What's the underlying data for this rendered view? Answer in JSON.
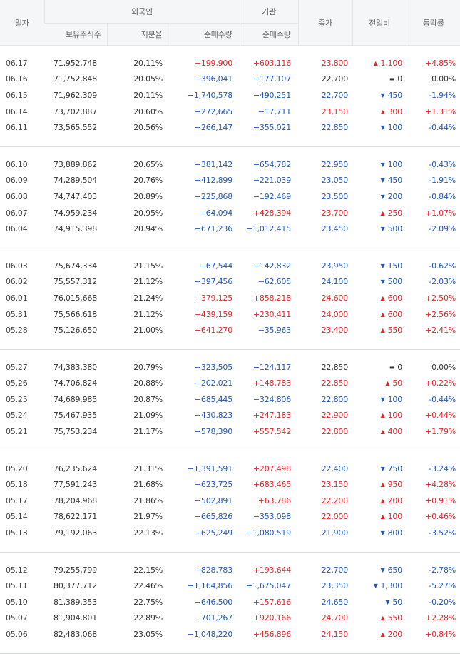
{
  "header": {
    "date": "일자",
    "foreign": "외국인",
    "institution": "기관",
    "close": "종가",
    "change": "전일비",
    "rate": "등락률",
    "holdings": "보유주식수",
    "ratio": "지분율",
    "foreign_net": "순매수량",
    "inst_net": "순매수량"
  },
  "groups": [
    [
      {
        "date": "06.17",
        "holdings": "71,952,748",
        "ratio": "20.11%",
        "foreign": "+199,900",
        "inst": "+603,116",
        "close": "23,800",
        "dir": "up",
        "change": "1,100",
        "rate": "+4.85%"
      },
      {
        "date": "06.16",
        "holdings": "71,752,848",
        "ratio": "20.05%",
        "foreign": "−396,041",
        "inst": "−177,107",
        "close": "22,700",
        "dir": "flat",
        "change": "0",
        "rate": "0.00%"
      },
      {
        "date": "06.15",
        "holdings": "71,962,309",
        "ratio": "20.11%",
        "foreign": "−1,740,578",
        "inst": "−490,251",
        "close": "22,700",
        "dir": "down",
        "change": "450",
        "rate": "-1.94%"
      },
      {
        "date": "06.14",
        "holdings": "73,702,887",
        "ratio": "20.60%",
        "foreign": "−272,665",
        "inst": "−17,711",
        "close": "23,150",
        "dir": "up",
        "change": "300",
        "rate": "+1.31%"
      },
      {
        "date": "06.11",
        "holdings": "73,565,552",
        "ratio": "20.56%",
        "foreign": "−266,147",
        "inst": "−355,021",
        "close": "22,850",
        "dir": "down",
        "change": "100",
        "rate": "-0.44%"
      }
    ],
    [
      {
        "date": "06.10",
        "holdings": "73,889,862",
        "ratio": "20.65%",
        "foreign": "−381,142",
        "inst": "−654,782",
        "close": "22,950",
        "dir": "down",
        "change": "100",
        "rate": "-0.43%"
      },
      {
        "date": "06.09",
        "holdings": "74,289,504",
        "ratio": "20.76%",
        "foreign": "−412,899",
        "inst": "−221,039",
        "close": "23,050",
        "dir": "down",
        "change": "450",
        "rate": "-1.91%"
      },
      {
        "date": "06.08",
        "holdings": "74,747,403",
        "ratio": "20.89%",
        "foreign": "−225,868",
        "inst": "−192,469",
        "close": "23,500",
        "dir": "down",
        "change": "200",
        "rate": "-0.84%"
      },
      {
        "date": "06.07",
        "holdings": "74,959,234",
        "ratio": "20.95%",
        "foreign": "−64,094",
        "inst": "+428,394",
        "close": "23,700",
        "dir": "up",
        "change": "250",
        "rate": "+1.07%"
      },
      {
        "date": "06.04",
        "holdings": "74,915,398",
        "ratio": "20.94%",
        "foreign": "−671,236",
        "inst": "−1,012,415",
        "close": "23,450",
        "dir": "down",
        "change": "500",
        "rate": "-2.09%"
      }
    ],
    [
      {
        "date": "06.03",
        "holdings": "75,674,334",
        "ratio": "21.15%",
        "foreign": "−67,544",
        "inst": "−142,832",
        "close": "23,950",
        "dir": "down",
        "change": "150",
        "rate": "-0.62%"
      },
      {
        "date": "06.02",
        "holdings": "75,557,312",
        "ratio": "21.12%",
        "foreign": "−397,456",
        "inst": "−62,605",
        "close": "24,100",
        "dir": "down",
        "change": "500",
        "rate": "-2.03%"
      },
      {
        "date": "06.01",
        "holdings": "76,015,668",
        "ratio": "21.24%",
        "foreign": "+379,125",
        "inst": "+858,218",
        "close": "24,600",
        "dir": "up",
        "change": "600",
        "rate": "+2.50%"
      },
      {
        "date": "05.31",
        "holdings": "75,566,618",
        "ratio": "21.12%",
        "foreign": "+439,159",
        "inst": "+230,411",
        "close": "24,000",
        "dir": "up",
        "change": "600",
        "rate": "+2.56%"
      },
      {
        "date": "05.28",
        "holdings": "75,126,650",
        "ratio": "21.00%",
        "foreign": "+641,270",
        "inst": "−35,963",
        "close": "23,400",
        "dir": "up",
        "change": "550",
        "rate": "+2.41%"
      }
    ],
    [
      {
        "date": "05.27",
        "holdings": "74,383,380",
        "ratio": "20.79%",
        "foreign": "−323,505",
        "inst": "−124,117",
        "close": "22,850",
        "dir": "flat",
        "change": "0",
        "rate": "0.00%"
      },
      {
        "date": "05.26",
        "holdings": "74,706,824",
        "ratio": "20.88%",
        "foreign": "−202,021",
        "inst": "+148,783",
        "close": "22,850",
        "dir": "up",
        "change": "50",
        "rate": "+0.22%"
      },
      {
        "date": "05.25",
        "holdings": "74,689,985",
        "ratio": "20.87%",
        "foreign": "−685,445",
        "inst": "−324,806",
        "close": "22,800",
        "dir": "down",
        "change": "100",
        "rate": "-0.44%"
      },
      {
        "date": "05.24",
        "holdings": "75,467,935",
        "ratio": "21.09%",
        "foreign": "−430,823",
        "inst": "+247,183",
        "close": "22,900",
        "dir": "up",
        "change": "100",
        "rate": "+0.44%"
      },
      {
        "date": "05.21",
        "holdings": "75,753,234",
        "ratio": "21.17%",
        "foreign": "−578,390",
        "inst": "+557,542",
        "close": "22,800",
        "dir": "up",
        "change": "400",
        "rate": "+1.79%"
      }
    ],
    [
      {
        "date": "05.20",
        "holdings": "76,235,624",
        "ratio": "21.31%",
        "foreign": "−1,391,591",
        "inst": "+207,498",
        "close": "22,400",
        "dir": "down",
        "change": "750",
        "rate": "-3.24%"
      },
      {
        "date": "05.18",
        "holdings": "77,591,243",
        "ratio": "21.68%",
        "foreign": "−623,725",
        "inst": "+683,465",
        "close": "23,150",
        "dir": "up",
        "change": "950",
        "rate": "+4.28%"
      },
      {
        "date": "05.17",
        "holdings": "78,204,968",
        "ratio": "21.86%",
        "foreign": "−502,891",
        "inst": "+63,786",
        "close": "22,200",
        "dir": "up",
        "change": "200",
        "rate": "+0.91%"
      },
      {
        "date": "05.14",
        "holdings": "78,622,171",
        "ratio": "21.97%",
        "foreign": "−665,826",
        "inst": "−353,098",
        "close": "22,000",
        "dir": "up",
        "change": "100",
        "rate": "+0.46%"
      },
      {
        "date": "05.13",
        "holdings": "79,192,063",
        "ratio": "22.13%",
        "foreign": "−625,249",
        "inst": "−1,080,519",
        "close": "21,900",
        "dir": "down",
        "change": "800",
        "rate": "-3.52%"
      }
    ],
    [
      {
        "date": "05.12",
        "holdings": "79,255,799",
        "ratio": "22.15%",
        "foreign": "−828,783",
        "inst": "+193,644",
        "close": "22,700",
        "dir": "down",
        "change": "650",
        "rate": "-2.78%"
      },
      {
        "date": "05.11",
        "holdings": "80,377,712",
        "ratio": "22.46%",
        "foreign": "−1,164,856",
        "inst": "−1,675,047",
        "close": "23,350",
        "dir": "down",
        "change": "1,300",
        "rate": "-5.27%"
      },
      {
        "date": "05.10",
        "holdings": "81,389,353",
        "ratio": "22.75%",
        "foreign": "−646,500",
        "inst": "+157,616",
        "close": "24,650",
        "dir": "down",
        "change": "50",
        "rate": "-0.20%"
      },
      {
        "date": "05.07",
        "holdings": "81,904,801",
        "ratio": "22.89%",
        "foreign": "−701,267",
        "inst": "+920,166",
        "close": "24,700",
        "dir": "up",
        "change": "550",
        "rate": "+2.28%"
      },
      {
        "date": "05.06",
        "holdings": "82,483,068",
        "ratio": "23.05%",
        "foreign": "−1,048,220",
        "inst": "+456,896",
        "close": "24,150",
        "dir": "up",
        "change": "200",
        "rate": "+0.84%"
      }
    ]
  ],
  "colors": {
    "up": "#e0262b",
    "down": "#2458b5",
    "flat": "#333333"
  },
  "icons": {
    "up": "up-triangle-icon",
    "down": "down-triangle-icon",
    "flat": "dash-icon"
  }
}
